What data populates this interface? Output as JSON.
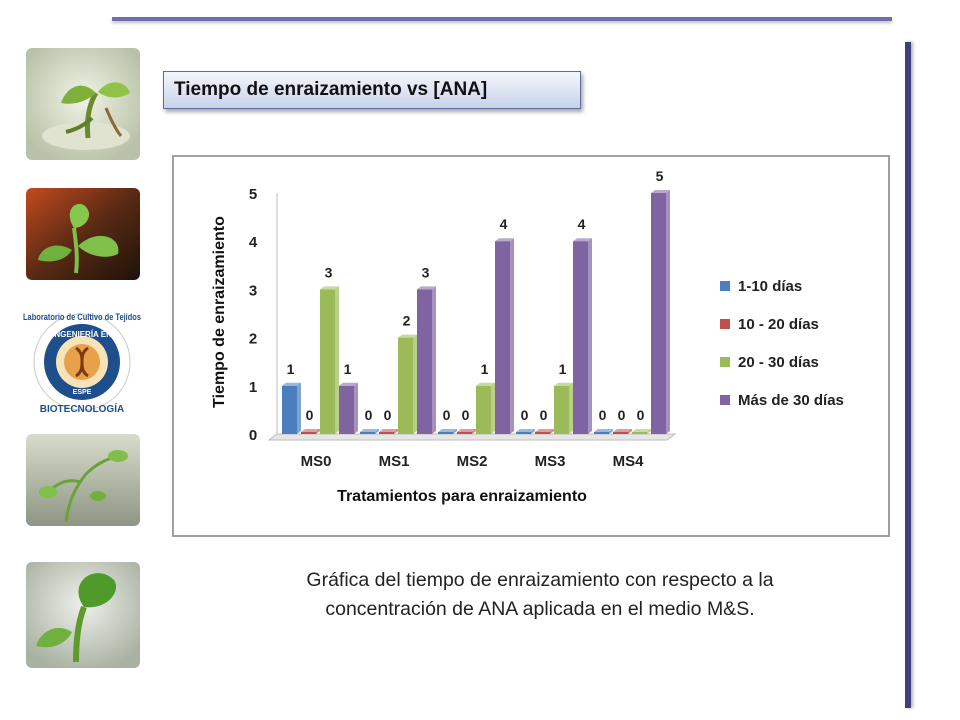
{
  "slide": {
    "title": "Tiempo de enraizamiento vs [ANA]",
    "caption_line1": "Gráfica del tiempo de enraizamiento con respecto a la",
    "caption_line2": "concentración de ANA aplicada en el medio M&S."
  },
  "logo": {
    "ring_text": "Laboratorio de Cultivo de Tejidos",
    "inner_top": "INGENIERÍA EN",
    "inner_bottom": "BIOTECNOLOGÍA",
    "center": "ESPE"
  },
  "chart_data": {
    "type": "bar",
    "categories": [
      "MS0",
      "MS1",
      "MS2",
      "MS3",
      "MS4"
    ],
    "series": [
      {
        "name": "1-10 días",
        "values": [
          1,
          0,
          0,
          0,
          0
        ],
        "color": "#4a7ebf"
      },
      {
        "name": "10 - 20 días",
        "values": [
          0,
          0,
          0,
          0,
          0
        ],
        "color": "#c0504d"
      },
      {
        "name": "20 - 30 días",
        "values": [
          3,
          2,
          1,
          1,
          0
        ],
        "color": "#9bbb59"
      },
      {
        "name": "Más de 30 días",
        "values": [
          1,
          3,
          4,
          4,
          5
        ],
        "color": "#8064a2"
      }
    ],
    "ylabel": "Tiempo de enraizamiento",
    "xlabel": "Tratamientos para enraizamiento",
    "ylim": [
      0,
      5
    ],
    "yticks": [
      "0",
      "1",
      "2",
      "3",
      "4",
      "5"
    ],
    "legend_position": "right",
    "grid": false
  }
}
